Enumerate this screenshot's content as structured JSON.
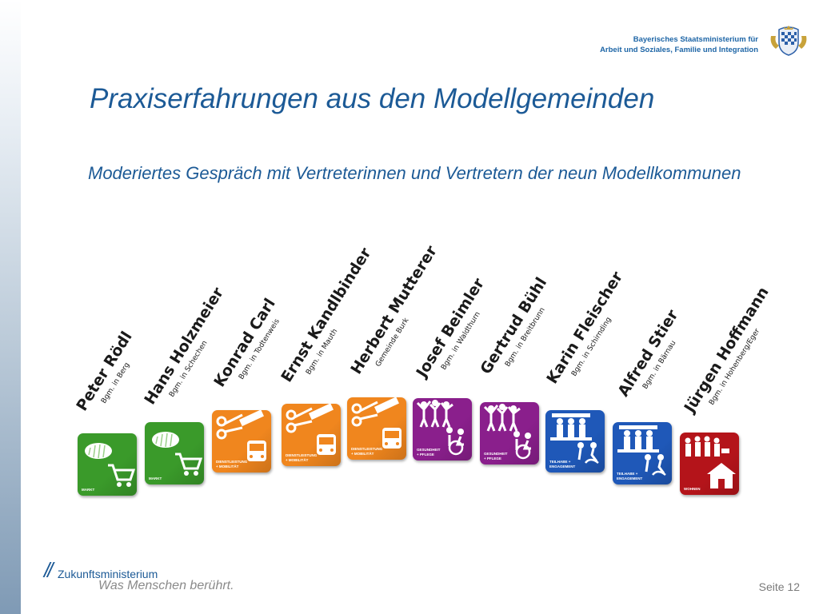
{
  "ministry": {
    "line1": "Bayerisches Staatsministerium für",
    "line2": "Arbeit und Soziales, Familie und Integration"
  },
  "title": "Praxiserfahrungen aus den Modellgemeinden",
  "subtitle": "Moderiertes Gespräch mit Vertreterinnen und Vertretern der neun Modellkommunen",
  "people": [
    {
      "name": "Peter Rödl",
      "place": "Bgm. in Berg",
      "tile": {
        "label": [
          "MARKT"
        ],
        "color": "#3a9a2a",
        "icon": "bread-cart-icon"
      }
    },
    {
      "name": "Hans Holzmeier",
      "place": "Bgm. in Schechen",
      "tile": {
        "label": [
          "MARKT"
        ],
        "color": "#3a9a2a",
        "icon": "bread-cart-icon"
      }
    },
    {
      "name": "Konrad Carl",
      "place": "Bgm. in Todtenweis",
      "tile": {
        "label": [
          "DIENSTLEISTUNG",
          "+ MOBILITÄT"
        ],
        "color": "#f0861e",
        "icon": "tools-bus-icon"
      }
    },
    {
      "name": "Ernst Kandlbinder",
      "place": "Bgm. in Mauth",
      "tile": {
        "label": [
          "DIENSTLEISTUNG",
          "+ MOBILITÄT"
        ],
        "color": "#f0861e",
        "icon": "tools-bus-icon"
      }
    },
    {
      "name": "Herbert Mutterer",
      "place": "Gemeinde Burk",
      "tile": {
        "label": [
          "DIENSTLEISTUNG",
          "+ MOBILITÄT"
        ],
        "color": "#f0861e",
        "icon": "tools-bus-icon"
      }
    },
    {
      "name": "Josef Beimler",
      "place": "Bgm. in Waldthurn",
      "tile": {
        "label": [
          "GESUNDHEIT",
          "+ PFLEGE"
        ],
        "color": "#8a1f8c",
        "icon": "health-care-icon"
      }
    },
    {
      "name": "Gertrud Bühl",
      "place": "Bgm. in Breitbrunn",
      "tile": {
        "label": [
          "GESUNDHEIT",
          "+ PFLEGE"
        ],
        "color": "#8a1f8c",
        "icon": "health-care-icon"
      }
    },
    {
      "name": "Karin Fleischer",
      "place": "Bgm. in Schirnding",
      "tile": {
        "label": [
          "TEILHABE +",
          "ENGAGEMENT"
        ],
        "color": "#1f58b8",
        "icon": "community-icon"
      }
    },
    {
      "name": "Alfred Stier",
      "place": "Bgm. in Bärnau",
      "tile": {
        "label": [
          "TEILHABE +",
          "ENGAGEMENT"
        ],
        "color": "#1f58b8",
        "icon": "community-icon"
      }
    },
    {
      "name": "Jürgen Hoffmann",
      "place": "Bgm. in Hohenberg/Eger",
      "tile": {
        "label": [
          "WOHNEN"
        ],
        "color": "#b4141a",
        "icon": "home-icon"
      }
    }
  ],
  "footer": {
    "slashes": "//",
    "brand": "Zukunftsministerium",
    "claim": "Was Menschen berührt."
  },
  "page_number": "Seite 12"
}
